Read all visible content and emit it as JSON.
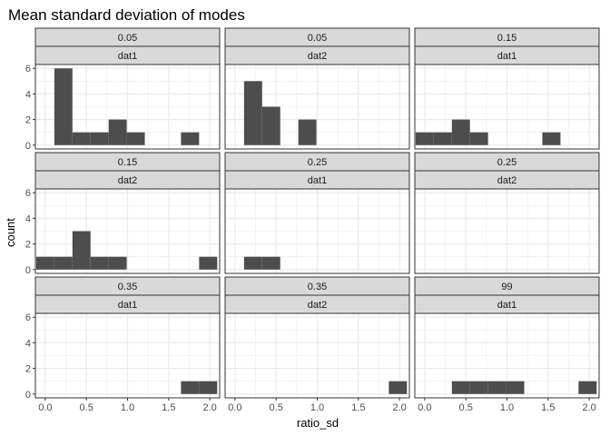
{
  "chart_data": {
    "type": "bar",
    "title": "Mean standard deviation of modes",
    "xlabel": "ratio_sd",
    "ylabel": "count",
    "xlim": [
      -0.12,
      2.12
    ],
    "ylim": [
      -0.3,
      6.3
    ],
    "x_ticks": [
      0.0,
      0.5,
      1.0,
      1.5,
      2.0
    ],
    "x_tick_labels": [
      "0.0",
      "0.5",
      "1.0",
      "1.5",
      "2.0"
    ],
    "y_ticks": [
      0,
      2,
      4,
      6
    ],
    "y_tick_labels": [
      "0",
      "2",
      "4",
      "6"
    ],
    "grid": true,
    "bar_color": "#4d4d4d",
    "strip_fill": "#d9d9d9",
    "panel_border": "#333333",
    "grid_color": "#ebebeb",
    "bin_width": 0.22,
    "panels": [
      {
        "strip1": "0.05",
        "strip2": "dat1",
        "bins": [
          [
            0.22,
            6
          ],
          [
            0.44,
            1
          ],
          [
            0.66,
            1
          ],
          [
            0.88,
            2
          ],
          [
            1.1,
            1
          ],
          [
            1.76,
            1
          ]
        ]
      },
      {
        "strip1": "0.05",
        "strip2": "dat2",
        "bins": [
          [
            0.22,
            5
          ],
          [
            0.44,
            3
          ],
          [
            0.88,
            2
          ]
        ]
      },
      {
        "strip1": "0.15",
        "strip2": "dat1",
        "bins": [
          [
            0.0,
            1
          ],
          [
            0.22,
            1
          ],
          [
            0.44,
            2
          ],
          [
            0.66,
            1
          ],
          [
            1.54,
            1
          ]
        ]
      },
      {
        "strip1": "0.15",
        "strip2": "dat2",
        "bins": [
          [
            0.0,
            1
          ],
          [
            0.22,
            1
          ],
          [
            0.44,
            3
          ],
          [
            0.66,
            1
          ],
          [
            0.88,
            1
          ],
          [
            1.98,
            1
          ]
        ]
      },
      {
        "strip1": "0.25",
        "strip2": "dat1",
        "bins": [
          [
            0.22,
            1
          ],
          [
            0.44,
            1
          ]
        ]
      },
      {
        "strip1": "0.25",
        "strip2": "dat2",
        "bins": []
      },
      {
        "strip1": "0.35",
        "strip2": "dat1",
        "bins": [
          [
            1.76,
            1
          ],
          [
            1.98,
            1
          ]
        ]
      },
      {
        "strip1": "0.35",
        "strip2": "dat2",
        "bins": [
          [
            1.98,
            1
          ]
        ]
      },
      {
        "strip1": "99",
        "strip2": "dat1",
        "bins": [
          [
            0.44,
            1
          ],
          [
            0.66,
            1
          ],
          [
            0.88,
            1
          ],
          [
            1.1,
            1
          ],
          [
            1.98,
            1
          ]
        ]
      }
    ]
  }
}
